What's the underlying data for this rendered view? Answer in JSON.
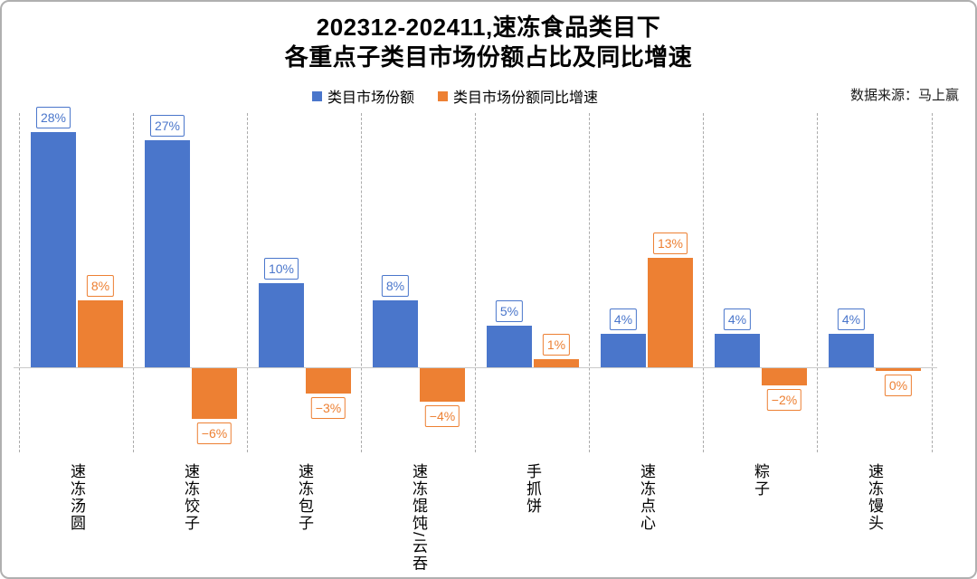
{
  "title_line1": "202312-202411,速冻食品类目下",
  "title_line2": "各重点子类目市场份额占比及同比增速",
  "source": "数据来源：马上赢",
  "colors": {
    "share": "#4A76CB",
    "growth": "#ED8033"
  },
  "chart_data": {
    "type": "bar",
    "title": "202312-202411,速冻食品类目下 各重点子类目市场份额占比及同比增速",
    "categories": [
      "速冻汤圆",
      "速冻饺子",
      "速冻包子",
      "速冻馄饨/云吞",
      "手抓饼",
      "速冻点心",
      "粽子",
      "速冻馒头"
    ],
    "series": [
      {
        "name": "类目市场份额",
        "color": "#4A76CB",
        "values": [
          28,
          27,
          10,
          8,
          5,
          4,
          4,
          4
        ]
      },
      {
        "name": "类目市场份额同比增速",
        "color": "#ED8033",
        "values": [
          8,
          -6,
          -3,
          -4,
          1,
          13,
          -2,
          0
        ]
      }
    ],
    "unit": "%",
    "ylim": [
      -8,
      30
    ],
    "grid": "vertical-dashed",
    "legend_position": "top-center",
    "value_labels": "boxed"
  }
}
